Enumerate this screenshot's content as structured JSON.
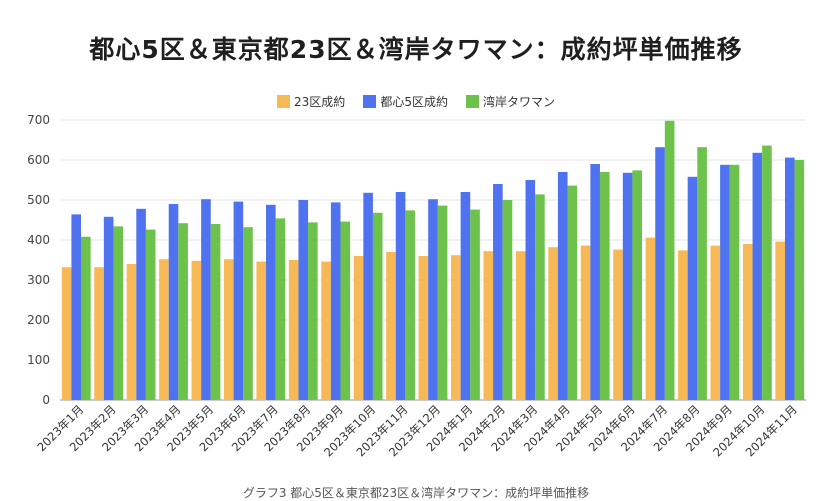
{
  "chart_data": {
    "type": "bar",
    "title": "都心5区＆東京都23区＆湾岸タワマン：成約坪単価推移",
    "caption": "グラフ3 都心5区＆東京都23区＆湾岸タワマン：成約坪単価推移",
    "xlabel": "",
    "ylabel": "",
    "ylim": [
      0,
      700
    ],
    "yticks": [
      0,
      100,
      200,
      300,
      400,
      500,
      600,
      700
    ],
    "grid": true,
    "legend_position": "top",
    "categories": [
      "2023年1月",
      "2023年2月",
      "2023年3月",
      "2023年4月",
      "2023年5月",
      "2023年6月",
      "2023年7月",
      "2023年8月",
      "2023年9月",
      "2023年10月",
      "2023年11月",
      "2023年12月",
      "2024年1月",
      "2024年2月",
      "2024年3月",
      "2024年4月",
      "2024年5月",
      "2024年6月",
      "2024年7月",
      "2024年8月",
      "2024年9月",
      "2024年10月",
      "2024年11月"
    ],
    "series": [
      {
        "name": "23区成約",
        "color": "#F7B955",
        "values": [
          332,
          332,
          340,
          352,
          348,
          352,
          346,
          350,
          346,
          360,
          370,
          360,
          362,
          372,
          372,
          382,
          386,
          376,
          406,
          374,
          386,
          390,
          396
        ]
      },
      {
        "name": "都心5区成約",
        "color": "#4F73F0",
        "values": [
          464,
          458,
          478,
          490,
          502,
          496,
          488,
          500,
          494,
          518,
          520,
          502,
          520,
          540,
          550,
          570,
          590,
          568,
          632,
          558,
          588,
          618,
          606
        ]
      },
      {
        "name": "湾岸タワマン",
        "color": "#6CC24A",
        "values": [
          408,
          434,
          426,
          442,
          440,
          432,
          454,
          444,
          446,
          468,
          474,
          486,
          476,
          500,
          514,
          536,
          570,
          574,
          698,
          632,
          588,
          636,
          600
        ]
      }
    ]
  }
}
